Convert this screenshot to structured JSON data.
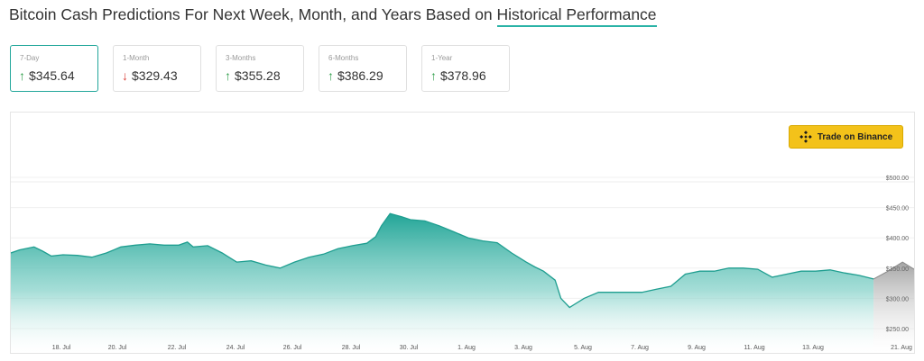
{
  "header": {
    "title_prefix": "Bitcoin Cash Predictions For Next Week, Month, and Years Based on ",
    "title_link": "Historical Performance"
  },
  "cards": [
    {
      "label": "7-Day",
      "value": "$345.64",
      "direction": "up",
      "active": true
    },
    {
      "label": "1-Month",
      "value": "$329.43",
      "direction": "down",
      "active": false
    },
    {
      "label": "3-Months",
      "value": "$355.28",
      "direction": "up",
      "active": false
    },
    {
      "label": "6-Months",
      "value": "$386.29",
      "direction": "up",
      "active": false
    },
    {
      "label": "1-Year",
      "value": "$378.96",
      "direction": "up",
      "active": false
    }
  ],
  "trade_button": {
    "label": "Trade on Binance",
    "icon": "binance-icon"
  },
  "colors": {
    "accent": "#23a79b",
    "up": "#2e9e4a",
    "down": "#d9413b",
    "button": "#f3c21a"
  },
  "chart_data": {
    "type": "area",
    "title": "",
    "xlabel": "",
    "ylabel": "",
    "ylim": [
      240,
      510
    ],
    "yticks": [
      250,
      300,
      350,
      400,
      450,
      500
    ],
    "ytick_labels": [
      "$250.00",
      "$300.00",
      "$350.00",
      "$400.00",
      "$450.00",
      "$500.00"
    ],
    "xticks": [
      "18. Jul",
      "20. Jul",
      "22. Jul",
      "24. Jul",
      "26. Jul",
      "28. Jul",
      "30. Jul",
      "1. Aug",
      "3. Aug",
      "5. Aug",
      "7. Aug",
      "9. Aug",
      "11. Aug",
      "13. Aug",
      "21. Aug"
    ],
    "grid": true,
    "series": [
      {
        "name": "",
        "x": [
          16.2,
          16.5,
          17.0,
          17.3,
          17.6,
          18.0,
          18.5,
          19.0,
          19.5,
          20.0,
          20.5,
          21.0,
          21.5,
          22.0,
          22.3,
          22.5,
          23.0,
          23.5,
          24.0,
          24.5,
          25.0,
          25.5,
          26.0,
          26.5,
          27.0,
          27.5,
          28.0,
          28.5,
          28.8,
          29.0,
          29.3,
          29.7,
          30.0,
          30.5,
          31.0,
          31.5,
          32.0,
          32.5,
          33.0,
          33.5,
          34.0,
          34.3,
          34.6,
          35.0,
          35.2,
          35.5,
          36.0,
          36.5,
          37.0,
          37.5,
          38.0,
          38.5,
          39.0,
          39.5,
          40.0,
          40.5,
          41.0,
          41.5,
          42.0,
          42.5,
          43.0,
          43.5,
          44.0,
          44.5,
          45.0,
          45.5,
          46.0
        ],
        "values": [
          375,
          380,
          385,
          378,
          370,
          372,
          371,
          368,
          375,
          385,
          388,
          390,
          388,
          388,
          393,
          385,
          387,
          375,
          360,
          362,
          355,
          350,
          360,
          368,
          373,
          382,
          387,
          391,
          402,
          420,
          440,
          435,
          430,
          428,
          420,
          410,
          400,
          395,
          392,
          375,
          360,
          352,
          345,
          330,
          300,
          285,
          300,
          310,
          310,
          310,
          310,
          315,
          320,
          340,
          345,
          345,
          350,
          350,
          348,
          335,
          340,
          345,
          345,
          347,
          342,
          338,
          332
        ]
      }
    ],
    "forecast": {
      "x": [
        46.0,
        46.5,
        47.0,
        47.4
      ],
      "values": [
        332,
        345,
        360,
        348
      ]
    }
  }
}
